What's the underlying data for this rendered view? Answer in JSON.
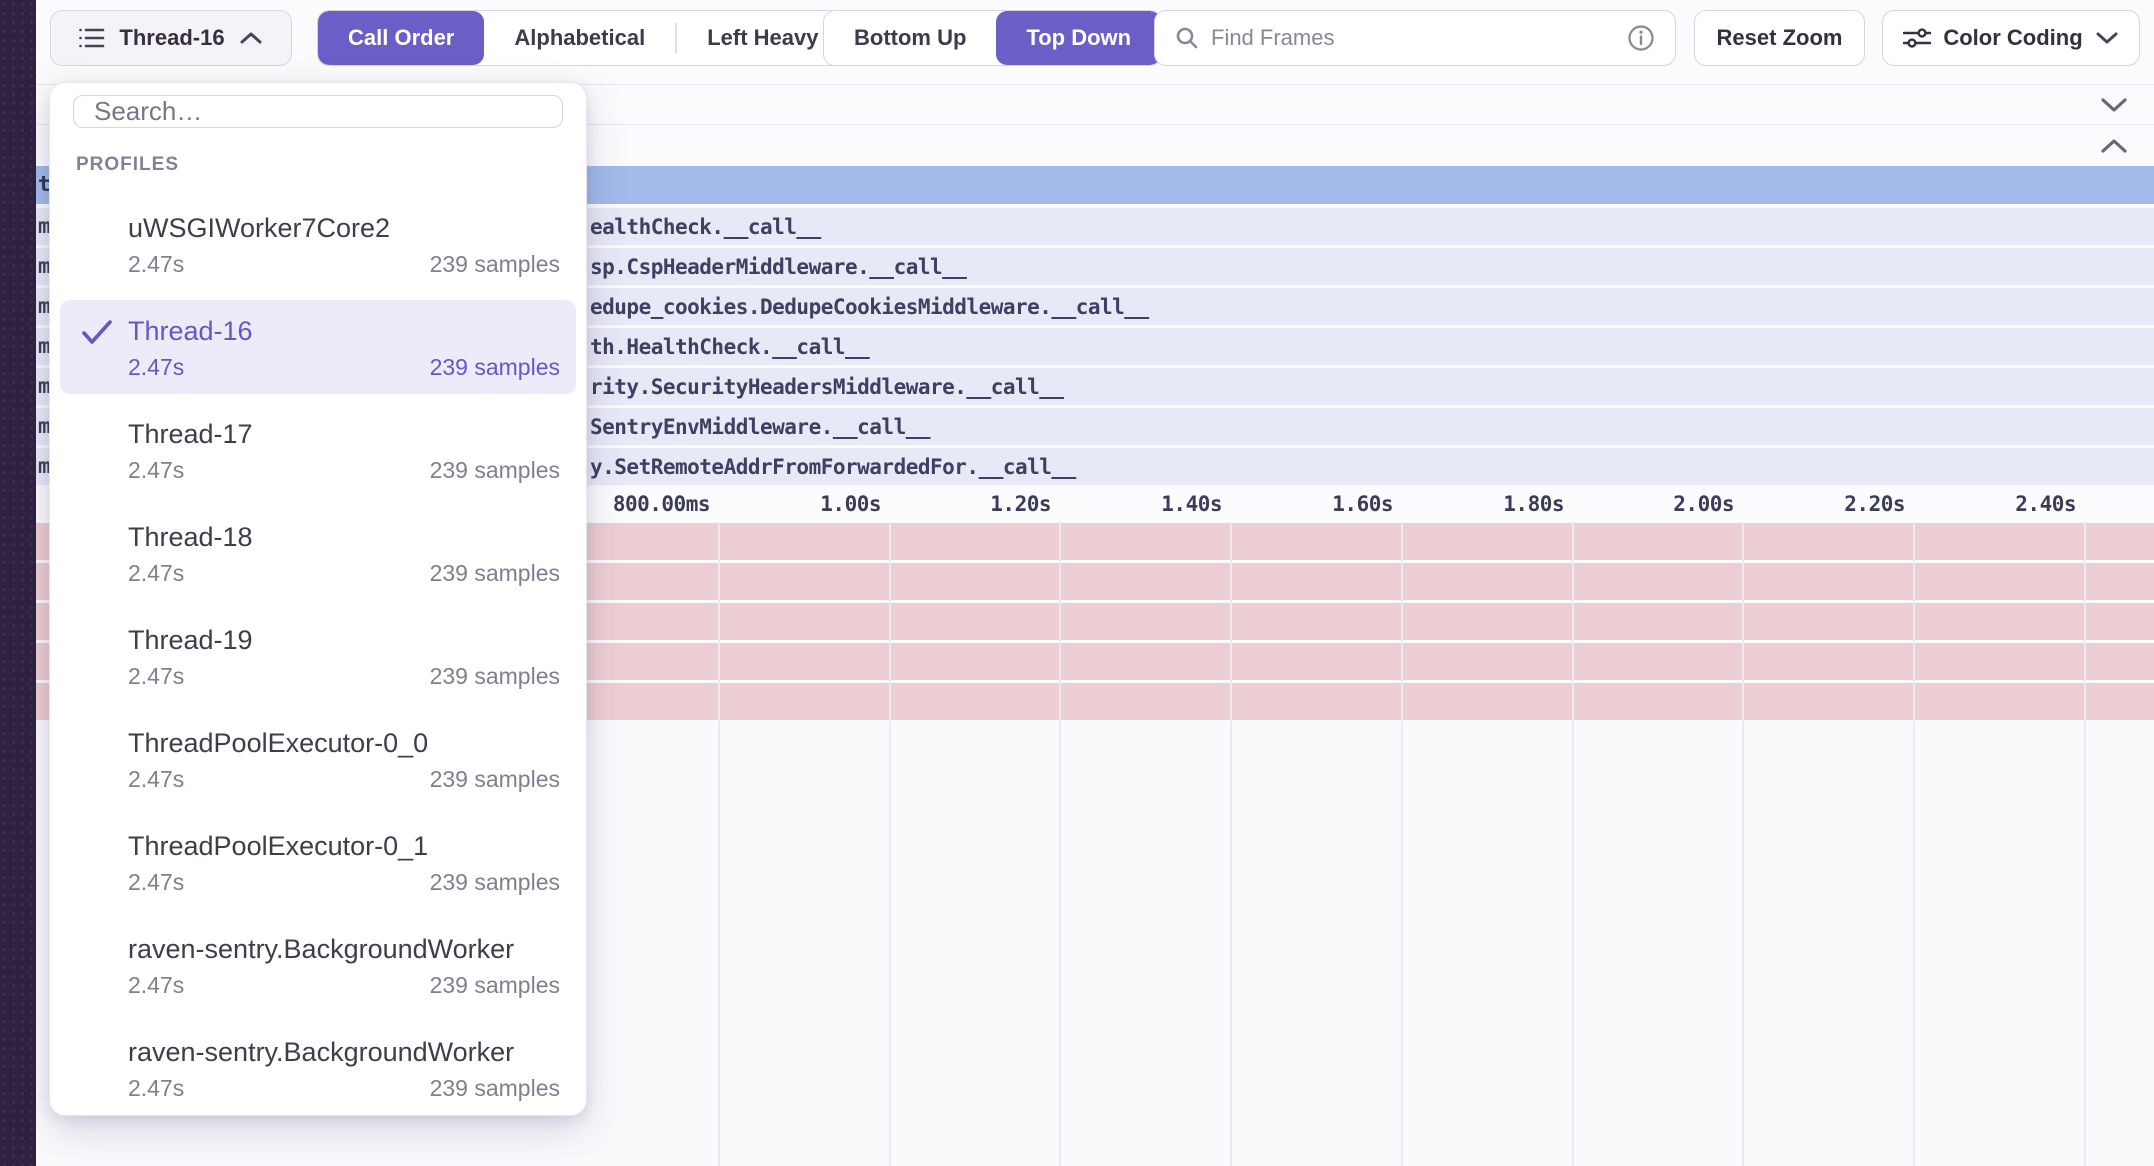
{
  "colors": {
    "accent": "#6b5ec7",
    "selected_row_blue": "#a3baea",
    "frame_row_lavender": "#e8e9f7",
    "frame_pink": "#edced2",
    "sidebar_dark": "#2f2240"
  },
  "toolbar": {
    "thread_selector_label": "Thread-16",
    "order_options": [
      {
        "label": "Call Order",
        "selected": true
      },
      {
        "label": "Alphabetical",
        "selected": false
      },
      {
        "label": "Left Heavy",
        "selected": false
      }
    ],
    "direction_options": [
      {
        "label": "Bottom Up",
        "selected": false
      },
      {
        "label": "Top Down",
        "selected": true
      }
    ],
    "find_frames_placeholder": "Find Frames",
    "reset_zoom_label": "Reset Zoom",
    "color_coding_label": "Color Coding"
  },
  "profiles_dropdown": {
    "search_placeholder": "Search…",
    "section_label": "PROFILES",
    "items": [
      {
        "name": "uWSGIWorker7Core2",
        "duration": "2.47s",
        "samples": "239 samples",
        "selected": false
      },
      {
        "name": "Thread-16",
        "duration": "2.47s",
        "samples": "239 samples",
        "selected": true
      },
      {
        "name": "Thread-17",
        "duration": "2.47s",
        "samples": "239 samples",
        "selected": false
      },
      {
        "name": "Thread-18",
        "duration": "2.47s",
        "samples": "239 samples",
        "selected": false
      },
      {
        "name": "Thread-19",
        "duration": "2.47s",
        "samples": "239 samples",
        "selected": false
      },
      {
        "name": "ThreadPoolExecutor-0_0",
        "duration": "2.47s",
        "samples": "239 samples",
        "selected": false
      },
      {
        "name": "ThreadPoolExecutor-0_1",
        "duration": "2.47s",
        "samples": "239 samples",
        "selected": false
      },
      {
        "name": "raven-sentry.BackgroundWorker",
        "duration": "2.47s",
        "samples": "239 samples",
        "selected": false
      },
      {
        "name": "raven-sentry.BackgroundWorker",
        "duration": "2.47s",
        "samples": "239 samples",
        "selected": false
      }
    ]
  },
  "flamegraph": {
    "edge_letters": [
      "t",
      "m",
      "m",
      "m",
      "m",
      "m",
      "m",
      "m"
    ],
    "frame_rows": [
      "",
      "ealthCheck.__call__",
      "sp.CspHeaderMiddleware.__call__",
      "edupe_cookies.DedupeCookiesMiddleware.__call__",
      "th.HealthCheck.__call__",
      "rity.SecurityHeadersMiddleware.__call__",
      "SentryEnvMiddleware.__call__",
      "y.SetRemoteAddrFromForwardedFor.__call__"
    ],
    "axis_ticks": [
      "800.00ms",
      "1.00s",
      "1.20s",
      "1.40s",
      "1.60s",
      "1.80s",
      "2.00s",
      "2.20s",
      "2.40s"
    ],
    "pink_row_count": 5
  }
}
